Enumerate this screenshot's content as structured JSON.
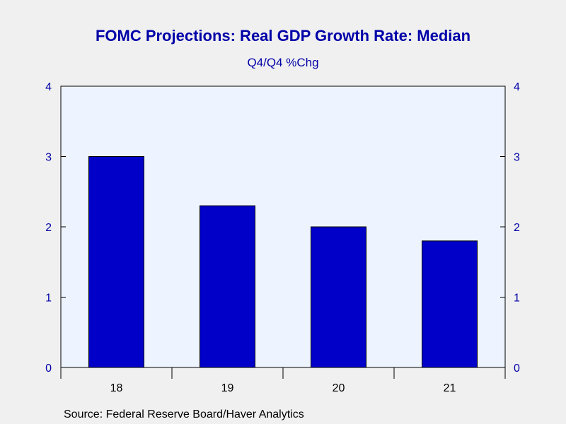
{
  "chart_data": {
    "type": "bar",
    "title": "FOMC Projections: Real GDP Growth Rate: Median",
    "subtitle": "Q4/Q4 %Chg",
    "source": "Source:  Federal Reserve Board/Haver Analytics",
    "categories": [
      "18",
      "19",
      "20",
      "21"
    ],
    "values": [
      3.0,
      2.3,
      2.0,
      1.8
    ],
    "ylim": [
      0,
      4
    ],
    "yticks": [
      "0",
      "1",
      "2",
      "3",
      "4"
    ],
    "y_axis_both_sides": true,
    "grid": false,
    "legend": "none",
    "colors": {
      "bar": "#0000c8",
      "plot_background": "#eef4ff",
      "page_background": "#f0f0f0",
      "text": "#0000a8"
    }
  }
}
